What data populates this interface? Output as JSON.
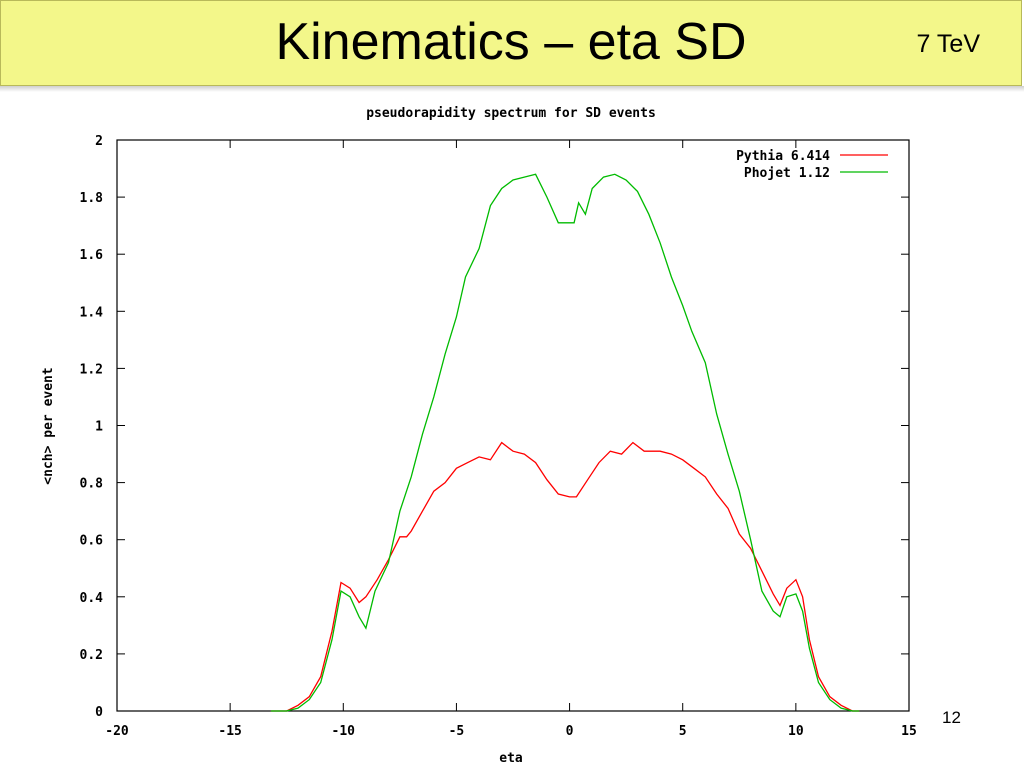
{
  "slide": {
    "title": "Kinematics – eta SD",
    "energy": "7 TeV",
    "page_number": "12",
    "header_color": "#f3f78a"
  },
  "chart_data": {
    "type": "line",
    "title": "pseudorapidity spectrum for SD events",
    "xlabel": "eta",
    "ylabel": "<nch> per event",
    "xlim": [
      -20,
      15
    ],
    "ylim": [
      0,
      2
    ],
    "xticks": [
      -20,
      -15,
      -10,
      -5,
      0,
      5,
      10,
      15
    ],
    "xtick_labels": [
      "-20",
      "-15",
      "-10",
      "-5",
      "0",
      "5",
      "10",
      "15"
    ],
    "yticks": [
      0,
      0.2,
      0.4,
      0.6,
      0.8,
      1,
      1.2,
      1.4,
      1.6,
      1.8,
      2
    ],
    "ytick_labels": [
      "0",
      "0.2",
      "0.4",
      "0.6",
      "0.8",
      "1",
      "1.2",
      "1.4",
      "1.6",
      "1.8",
      "2"
    ],
    "legend_position": "top-right",
    "grid": false,
    "series": [
      {
        "name": "Pythia 6.414",
        "color": "#ff0000",
        "points": [
          [
            -13.2,
            0.0
          ],
          [
            -12.5,
            0.0
          ],
          [
            -12,
            0.02
          ],
          [
            -11.5,
            0.05
          ],
          [
            -11,
            0.12
          ],
          [
            -10.5,
            0.28
          ],
          [
            -10.1,
            0.45
          ],
          [
            -9.7,
            0.43
          ],
          [
            -9.3,
            0.38
          ],
          [
            -9,
            0.4
          ],
          [
            -8.5,
            0.46
          ],
          [
            -8,
            0.53
          ],
          [
            -7.5,
            0.61
          ],
          [
            -7.2,
            0.61
          ],
          [
            -7,
            0.63
          ],
          [
            -6.5,
            0.7
          ],
          [
            -6,
            0.77
          ],
          [
            -5.5,
            0.8
          ],
          [
            -5,
            0.85
          ],
          [
            -4.5,
            0.87
          ],
          [
            -4,
            0.89
          ],
          [
            -3.5,
            0.88
          ],
          [
            -3,
            0.94
          ],
          [
            -2.5,
            0.91
          ],
          [
            -2,
            0.9
          ],
          [
            -1.5,
            0.87
          ],
          [
            -1,
            0.81
          ],
          [
            -0.5,
            0.76
          ],
          [
            0,
            0.75
          ],
          [
            0.3,
            0.75
          ],
          [
            0.8,
            0.81
          ],
          [
            1.3,
            0.87
          ],
          [
            1.8,
            0.91
          ],
          [
            2.3,
            0.9
          ],
          [
            2.8,
            0.94
          ],
          [
            3.3,
            0.91
          ],
          [
            4,
            0.91
          ],
          [
            4.5,
            0.9
          ],
          [
            5,
            0.88
          ],
          [
            5.5,
            0.85
          ],
          [
            6,
            0.82
          ],
          [
            6.5,
            0.76
          ],
          [
            7,
            0.71
          ],
          [
            7.5,
            0.62
          ],
          [
            8,
            0.57
          ],
          [
            8.5,
            0.49
          ],
          [
            9,
            0.41
          ],
          [
            9.3,
            0.37
          ],
          [
            9.6,
            0.43
          ],
          [
            10,
            0.46
          ],
          [
            10.3,
            0.4
          ],
          [
            10.6,
            0.25
          ],
          [
            11,
            0.12
          ],
          [
            11.5,
            0.05
          ],
          [
            12,
            0.02
          ],
          [
            12.5,
            0.0
          ],
          [
            12.8,
            0.0
          ]
        ]
      },
      {
        "name": "Phojet 1.12",
        "color": "#00bb00",
        "points": [
          [
            -13.2,
            0.0
          ],
          [
            -12.5,
            0.0
          ],
          [
            -12,
            0.01
          ],
          [
            -11.5,
            0.04
          ],
          [
            -11,
            0.1
          ],
          [
            -10.5,
            0.25
          ],
          [
            -10.1,
            0.42
          ],
          [
            -9.7,
            0.4
          ],
          [
            -9.3,
            0.33
          ],
          [
            -9,
            0.29
          ],
          [
            -8.6,
            0.42
          ],
          [
            -8,
            0.52
          ],
          [
            -7.5,
            0.7
          ],
          [
            -7,
            0.82
          ],
          [
            -6.5,
            0.97
          ],
          [
            -6,
            1.1
          ],
          [
            -5.5,
            1.25
          ],
          [
            -5,
            1.38
          ],
          [
            -4.6,
            1.52
          ],
          [
            -4,
            1.62
          ],
          [
            -3.5,
            1.77
          ],
          [
            -3,
            1.83
          ],
          [
            -2.5,
            1.86
          ],
          [
            -2,
            1.87
          ],
          [
            -1.5,
            1.88
          ],
          [
            -1,
            1.8
          ],
          [
            -0.5,
            1.71
          ],
          [
            0,
            1.71
          ],
          [
            0.2,
            1.71
          ],
          [
            0.4,
            1.78
          ],
          [
            0.7,
            1.74
          ],
          [
            1,
            1.83
          ],
          [
            1.5,
            1.87
          ],
          [
            2,
            1.88
          ],
          [
            2.5,
            1.86
          ],
          [
            3,
            1.82
          ],
          [
            3.5,
            1.74
          ],
          [
            4,
            1.64
          ],
          [
            4.5,
            1.52
          ],
          [
            5,
            1.42
          ],
          [
            5.4,
            1.33
          ],
          [
            6,
            1.22
          ],
          [
            6.5,
            1.04
          ],
          [
            7,
            0.9
          ],
          [
            7.5,
            0.77
          ],
          [
            8,
            0.6
          ],
          [
            8.5,
            0.42
          ],
          [
            9,
            0.35
          ],
          [
            9.3,
            0.33
          ],
          [
            9.6,
            0.4
          ],
          [
            10,
            0.41
          ],
          [
            10.3,
            0.35
          ],
          [
            10.6,
            0.22
          ],
          [
            11,
            0.1
          ],
          [
            11.5,
            0.04
          ],
          [
            12,
            0.01
          ],
          [
            12.5,
            0.0
          ],
          [
            12.8,
            0.0
          ]
        ]
      }
    ]
  }
}
